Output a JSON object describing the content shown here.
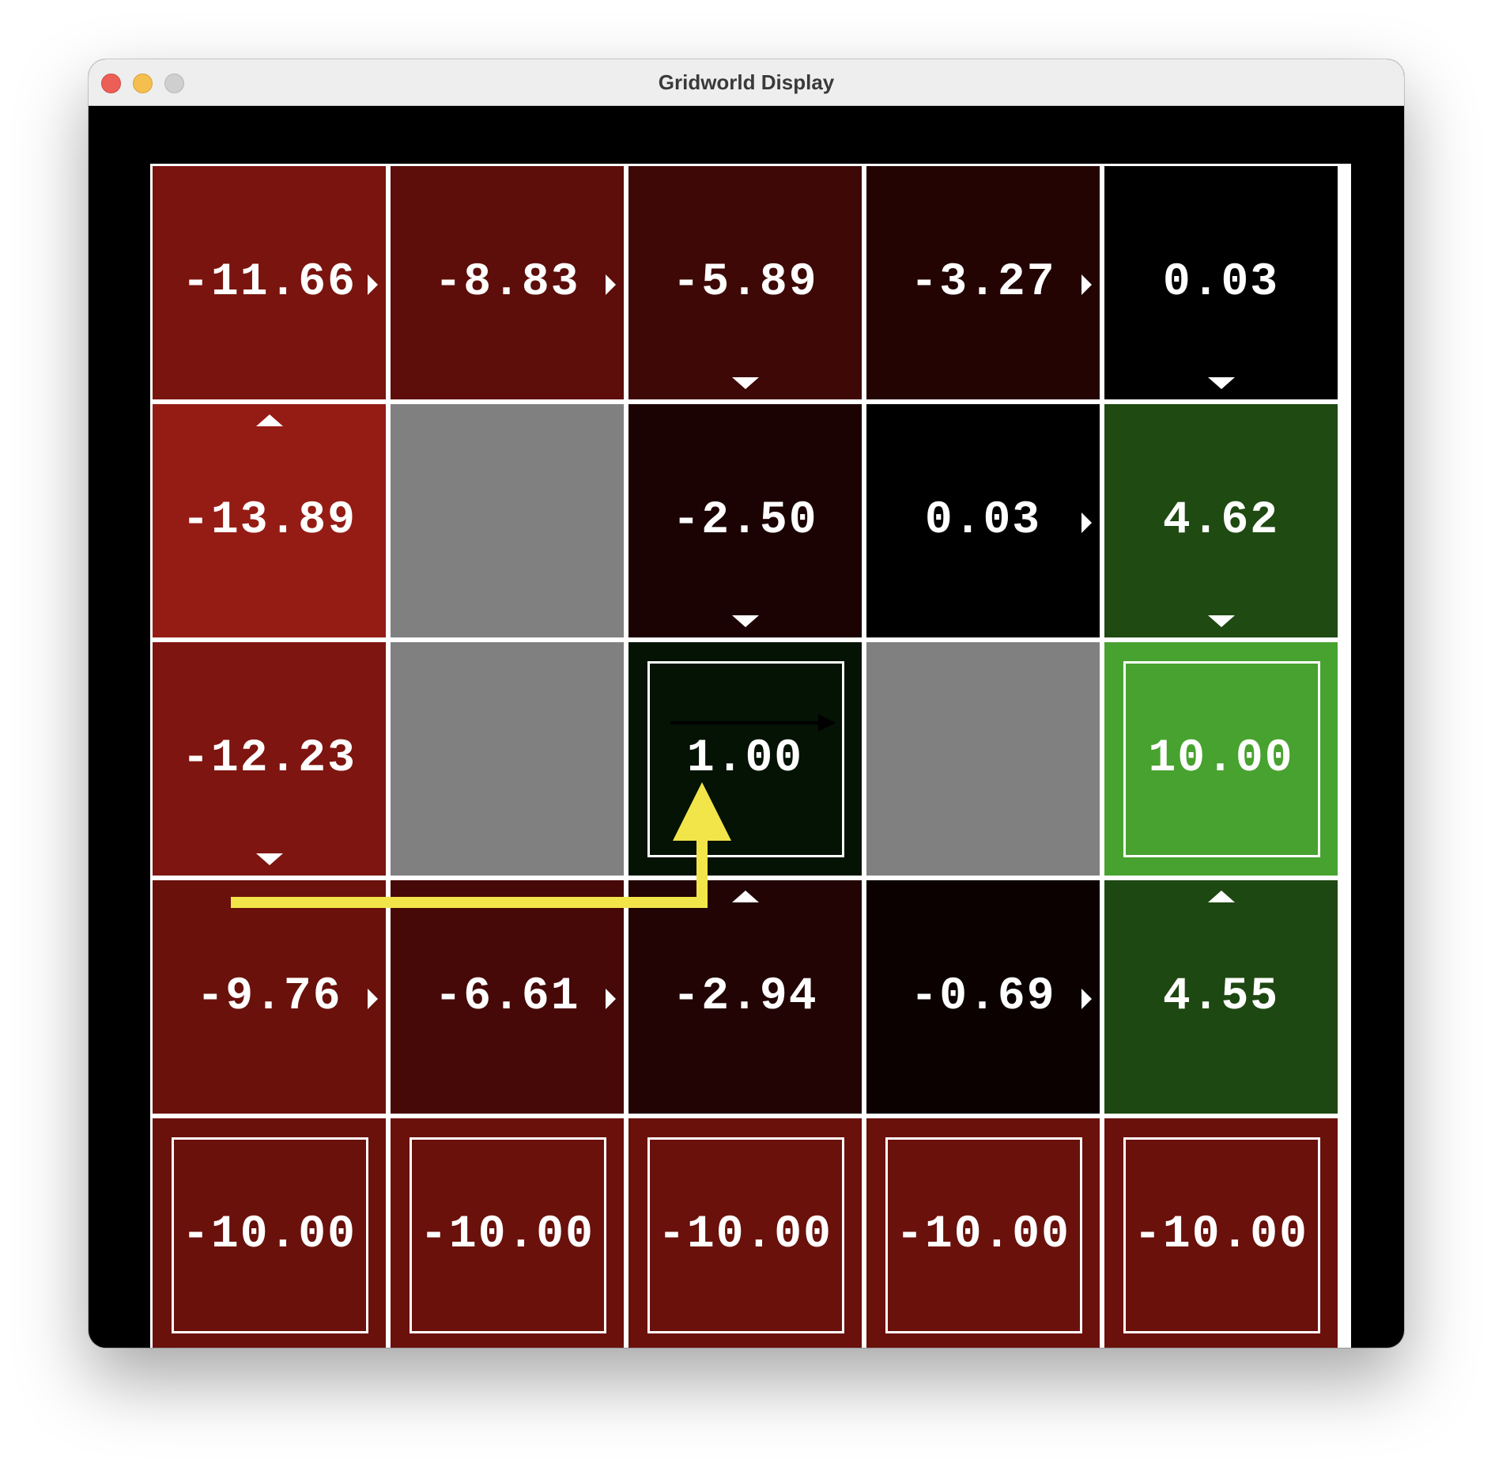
{
  "window": {
    "title": "Gridworld Display"
  },
  "grid": {
    "rows": [
      [
        {
          "type": "value",
          "label": "-11.66",
          "color": "#7a140f",
          "arrow": "right"
        },
        {
          "type": "value",
          "label": "-8.83",
          "color": "#5d0e0a",
          "arrow": "right"
        },
        {
          "type": "value",
          "label": "-5.89",
          "color": "#3e0807",
          "arrow": "down"
        },
        {
          "type": "value",
          "label": "-3.27",
          "color": "#230403",
          "arrow": "right"
        },
        {
          "type": "value",
          "label": "0.03",
          "color": "#000000",
          "arrow": "down"
        }
      ],
      [
        {
          "type": "value",
          "label": "-13.89",
          "color": "#951c15",
          "arrow": "up"
        },
        {
          "type": "wall",
          "color": "#808080"
        },
        {
          "type": "value",
          "label": "-2.50",
          "color": "#1c0303",
          "arrow": "down"
        },
        {
          "type": "value",
          "label": "0.03",
          "color": "#000000",
          "arrow": "right"
        },
        {
          "type": "value",
          "label": "4.62",
          "color": "#1f4a12",
          "arrow": "down"
        }
      ],
      [
        {
          "type": "value",
          "label": "-12.23",
          "color": "#7e1510",
          "arrow": "down"
        },
        {
          "type": "wall",
          "color": "#808080"
        },
        {
          "type": "terminal",
          "label": "1.00",
          "color": "#041304"
        },
        {
          "type": "wall",
          "color": "#808080"
        },
        {
          "type": "terminal",
          "label": "10.00",
          "color": "#48a22f"
        }
      ],
      [
        {
          "type": "value",
          "label": "-9.76",
          "color": "#6a110c",
          "arrow": "right"
        },
        {
          "type": "value",
          "label": "-6.61",
          "color": "#460908",
          "arrow": "right"
        },
        {
          "type": "value",
          "label": "-2.94",
          "color": "#220404",
          "arrow": "up"
        },
        {
          "type": "value",
          "label": "-0.69",
          "color": "#0b0101",
          "arrow": "right"
        },
        {
          "type": "value",
          "label": "4.55",
          "color": "#1e4811",
          "arrow": "up"
        }
      ],
      [
        {
          "type": "terminal",
          "label": "-10.00",
          "color": "#6a110c"
        },
        {
          "type": "terminal",
          "label": "-10.00",
          "color": "#6a110c"
        },
        {
          "type": "terminal",
          "label": "-10.00",
          "color": "#6a110c"
        },
        {
          "type": "terminal",
          "label": "-10.00",
          "color": "#6a110c"
        },
        {
          "type": "terminal",
          "label": "-10.00",
          "color": "#6a110c"
        }
      ]
    ]
  },
  "overlay": {
    "path_color": "#f2e54a",
    "agent_arrow_color": "#000000"
  }
}
